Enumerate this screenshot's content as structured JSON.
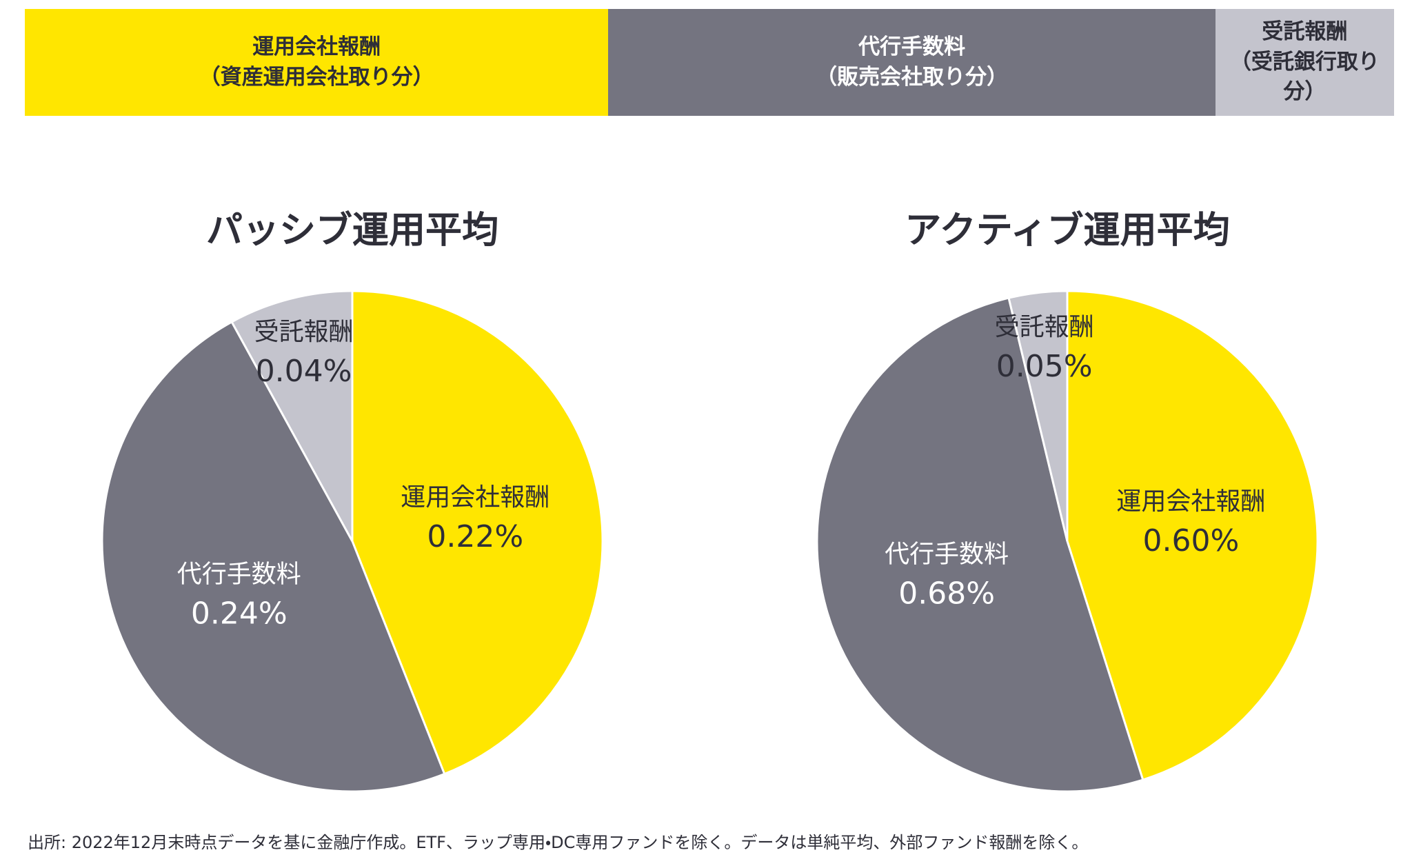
{
  "header": {
    "items": [
      {
        "title": "運用会社報酬",
        "subtitle": "（資産運用会社取り分）",
        "color": "#FFE600"
      },
      {
        "title": "代行手数料",
        "subtitle": "（販売会社取り分）",
        "color": "#747480"
      },
      {
        "title": "受託報酬",
        "subtitle": "（受託銀行取り分）",
        "color": "#C4C4CD"
      }
    ]
  },
  "chart_data": [
    {
      "type": "pie",
      "title": "パッシブ運用平均",
      "categories": [
        "運用会社報酬",
        "代行手数料",
        "受託報酬"
      ],
      "values": [
        0.22,
        0.24,
        0.04
      ],
      "value_labels": [
        "0.22%",
        "0.24%",
        "0.04%"
      ],
      "colors": [
        "#FFE600",
        "#747480",
        "#C4C4CD"
      ]
    },
    {
      "type": "pie",
      "title": "アクティブ運用平均",
      "categories": [
        "運用会社報酬",
        "代行手数料",
        "受託報酬"
      ],
      "values": [
        0.6,
        0.68,
        0.05
      ],
      "value_labels": [
        "0.60%",
        "0.68%",
        "0.05%"
      ],
      "colors": [
        "#FFE600",
        "#747480",
        "#C4C4CD"
      ]
    }
  ],
  "footnote": "出所: 2022年12月末時点データを基に金融庁作成。ETF、ラップ専用・DC専用ファンドを除く。データは単純平均、外部ファンド報酬を除く。"
}
